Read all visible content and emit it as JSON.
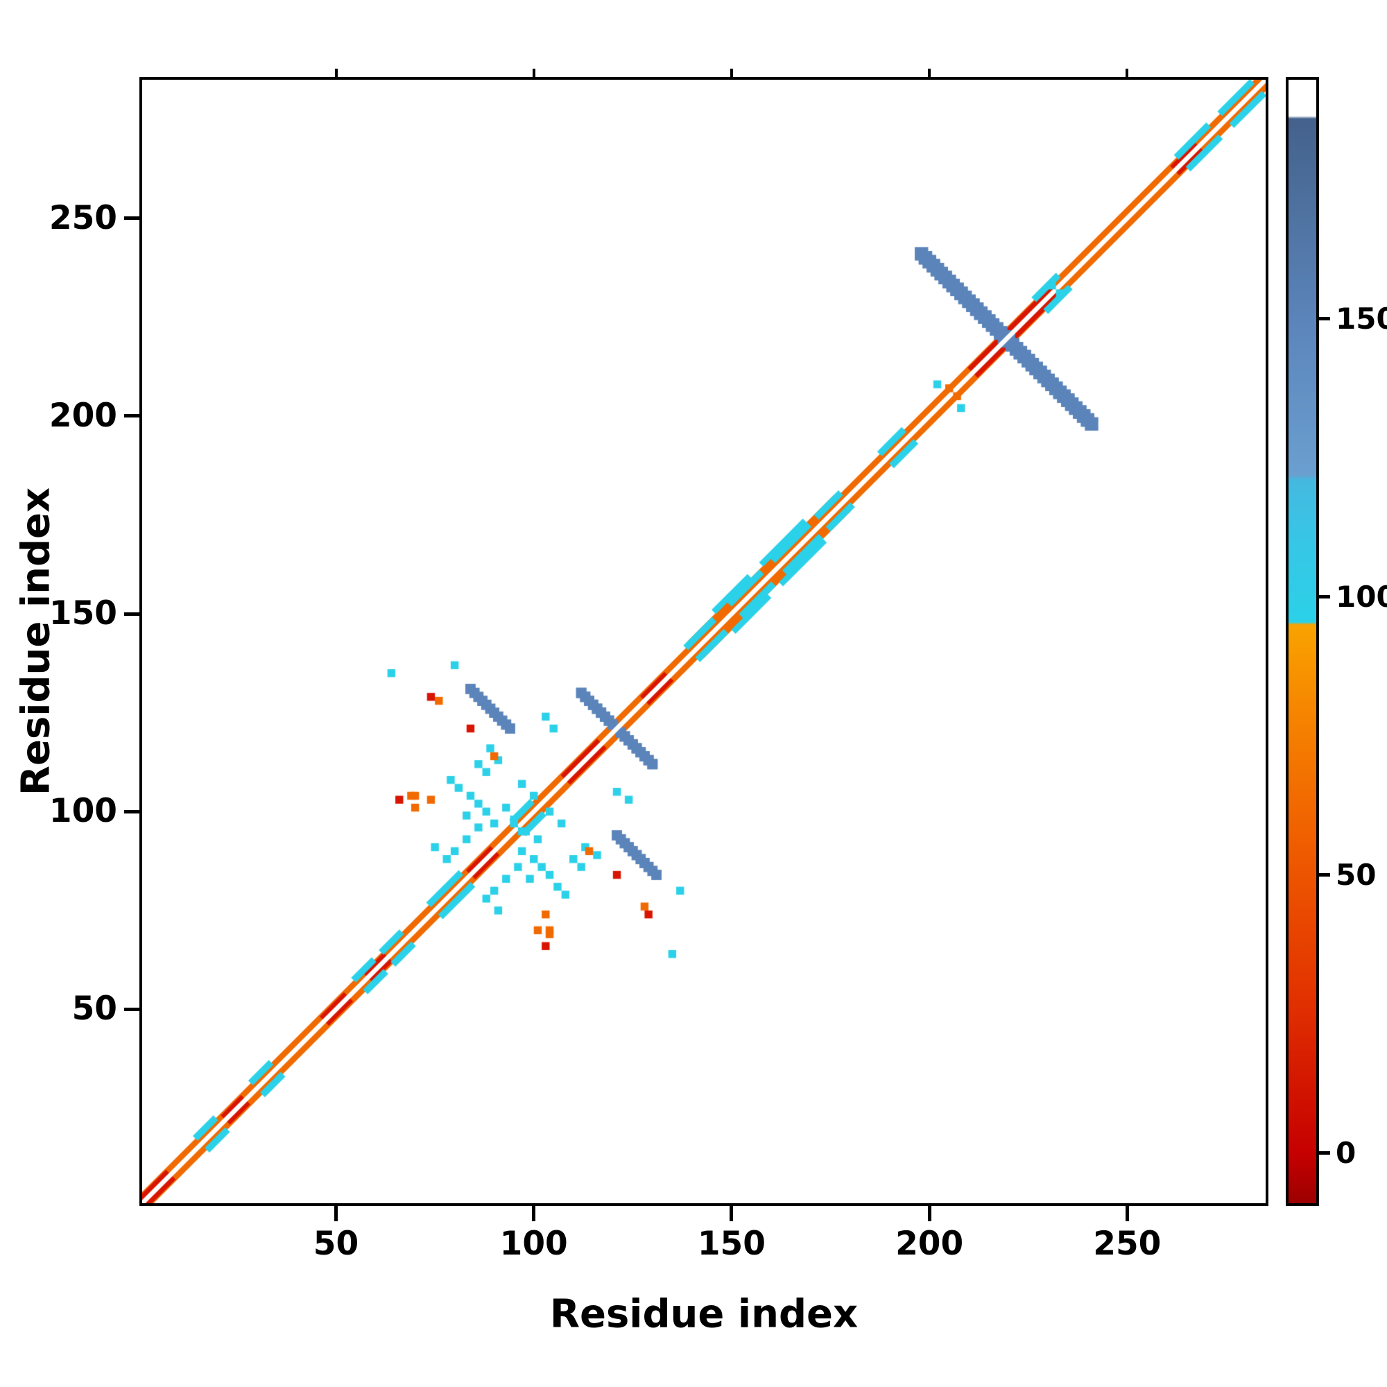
{
  "chart_data": {
    "type": "heatmap",
    "title": "",
    "xlabel": "Residue index",
    "ylabel": "Residue index",
    "xlim": [
      1,
      285
    ],
    "ylim": [
      1,
      285
    ],
    "xticks": [
      50,
      100,
      150,
      200,
      250
    ],
    "yticks": [
      50,
      100,
      150,
      200,
      250
    ],
    "grid": false,
    "background": "#ffffff",
    "palette": {
      "orange": "#f06a00",
      "red": "#d81500",
      "cyan": "#2bd1e8",
      "blue": "#5b84ba"
    },
    "colorbar": {
      "position": "right",
      "ticks": [
        0,
        50,
        100,
        150
      ],
      "range": [
        -9,
        193
      ],
      "stops": [
        {
          "v": -9,
          "c": "#9c0000"
        },
        {
          "v": 0,
          "c": "#c60000"
        },
        {
          "v": 28,
          "c": "#e23200"
        },
        {
          "v": 55,
          "c": "#ef5c00"
        },
        {
          "v": 80,
          "c": "#f68600"
        },
        {
          "v": 95,
          "c": "#f9a300"
        },
        {
          "v": 95.5,
          "c": "#2bd1e8"
        },
        {
          "v": 112,
          "c": "#39c4e5"
        },
        {
          "v": 121,
          "c": "#45b8e0"
        },
        {
          "v": 122,
          "c": "#6b9fd0"
        },
        {
          "v": 150,
          "c": "#5b84ba"
        },
        {
          "v": 170,
          "c": "#4e719f"
        },
        {
          "v": 186,
          "c": "#44618c"
        },
        {
          "v": 186.5,
          "c": "#ffffff"
        },
        {
          "v": 193,
          "c": "#ffffff"
        }
      ]
    },
    "features": [
      {
        "t": "dseg",
        "a": 1,
        "b": 285,
        "o": 1.5,
        "w": 2.0,
        "c": "#f06a00"
      },
      {
        "t": "dseg",
        "a": 140,
        "b": 176,
        "o": 3,
        "w": 1.7,
        "c": "#f06a00"
      },
      {
        "t": "dseg",
        "a": 1,
        "b": 7,
        "o": 1.2,
        "w": 1.8,
        "c": "#d81500"
      },
      {
        "t": "dseg",
        "a": 22,
        "b": 26,
        "o": 1.2,
        "w": 1.6,
        "c": "#d81500"
      },
      {
        "t": "dseg",
        "a": 47,
        "b": 52,
        "o": 1.2,
        "w": 1.6,
        "c": "#d81500"
      },
      {
        "t": "dseg",
        "a": 58,
        "b": 62,
        "o": 1.2,
        "w": 1.6,
        "c": "#d81500"
      },
      {
        "t": "dseg",
        "a": 84,
        "b": 89,
        "o": 1.2,
        "w": 1.6,
        "c": "#d81500"
      },
      {
        "t": "dseg",
        "a": 108,
        "b": 116,
        "o": 1.2,
        "w": 1.7,
        "c": "#d81500"
      },
      {
        "t": "dseg",
        "a": 128,
        "b": 133,
        "o": 1.2,
        "w": 1.6,
        "c": "#d81500"
      },
      {
        "t": "dseg",
        "a": 211,
        "b": 231,
        "o": 1.2,
        "w": 1.9,
        "c": "#d81500"
      },
      {
        "t": "dseg",
        "a": 262,
        "b": 267,
        "o": 1.2,
        "w": 1.6,
        "c": "#d81500"
      },
      {
        "t": "dseg",
        "a": 15,
        "b": 19,
        "o": 3,
        "w": 1.7,
        "c": "#2bd1e8"
      },
      {
        "t": "dseg",
        "a": 29,
        "b": 33,
        "o": 3,
        "w": 1.7,
        "c": "#2bd1e8"
      },
      {
        "t": "dseg",
        "a": 55,
        "b": 59,
        "o": 3,
        "w": 1.7,
        "c": "#2bd1e8"
      },
      {
        "t": "dseg",
        "a": 62,
        "b": 66,
        "o": 3,
        "w": 1.7,
        "c": "#2bd1e8"
      },
      {
        "t": "dseg",
        "a": 74,
        "b": 81,
        "o": 3,
        "w": 1.7,
        "c": "#2bd1e8"
      },
      {
        "t": "dseg",
        "a": 95,
        "b": 99,
        "o": 3,
        "w": 1.7,
        "c": "#2bd1e8"
      },
      {
        "t": "dseg",
        "a": 139,
        "b": 145,
        "o": 3,
        "w": 1.7,
        "c": "#2bd1e8"
      },
      {
        "t": "dseg",
        "a": 150,
        "b": 157,
        "o": 3,
        "w": 1.7,
        "c": "#2bd1e8"
      },
      {
        "t": "dseg",
        "a": 161,
        "b": 169,
        "o": 3,
        "w": 1.7,
        "c": "#2bd1e8"
      },
      {
        "t": "dseg",
        "a": 172,
        "b": 177,
        "o": 3,
        "w": 1.7,
        "c": "#2bd1e8"
      },
      {
        "t": "dseg",
        "a": 188,
        "b": 193,
        "o": 3,
        "w": 1.7,
        "c": "#2bd1e8"
      },
      {
        "t": "dseg",
        "a": 227,
        "b": 232,
        "o": 3,
        "w": 1.7,
        "c": "#2bd1e8"
      },
      {
        "t": "dseg",
        "a": 263,
        "b": 270,
        "o": 3,
        "w": 1.7,
        "c": "#2bd1e8"
      },
      {
        "t": "dseg",
        "a": 274,
        "b": 281,
        "o": 3,
        "w": 1.7,
        "c": "#2bd1e8"
      },
      {
        "t": "dseg",
        "a": 146,
        "b": 154,
        "o": 5,
        "w": 1.5,
        "c": "#2bd1e8"
      },
      {
        "t": "dseg",
        "a": 158,
        "b": 168,
        "o": 5,
        "w": 1.5,
        "c": "#2bd1e8"
      },
      {
        "t": "aseg",
        "x": 199,
        "y": 240,
        "len": 42,
        "w": 3.4,
        "c": "#5b84ba",
        "m": true
      },
      {
        "t": "aseg",
        "x": 112,
        "y": 130,
        "len": 18,
        "w": 2.6,
        "c": "#5b84ba",
        "m": true
      },
      {
        "t": "aseg",
        "x": 84,
        "y": 131,
        "len": 10,
        "w": 2.6,
        "c": "#5b84ba",
        "m": true
      },
      {
        "t": "dseg",
        "a": 1,
        "b": 285,
        "o": 0,
        "w": 1.15,
        "c": "#ffffff"
      },
      {
        "t": "pts",
        "s": 2,
        "c": "#2bd1e8",
        "m": true,
        "xy": [
          [
            97,
            90
          ],
          [
            100,
            88
          ],
          [
            102,
            86
          ],
          [
            104,
            84
          ],
          [
            99,
            83
          ],
          [
            96,
            86
          ],
          [
            93,
            83
          ],
          [
            106,
            81
          ],
          [
            108,
            79
          ],
          [
            110,
            88
          ],
          [
            112,
            86
          ],
          [
            90,
            80
          ],
          [
            88,
            78
          ],
          [
            95,
            97
          ],
          [
            98,
            95
          ],
          [
            101,
            93
          ],
          [
            104,
            100
          ],
          [
            107,
            97
          ],
          [
            91,
            75
          ],
          [
            113,
            91
          ],
          [
            116,
            89
          ],
          [
            121,
            105
          ],
          [
            124,
            103
          ],
          [
            137,
            80
          ],
          [
            64,
            135
          ],
          [
            231,
            233
          ],
          [
            208,
            202
          ]
        ]
      },
      {
        "t": "pts",
        "s": 2,
        "c": "#f06a00",
        "m": true,
        "xy": [
          [
            70,
            104
          ],
          [
            74,
            103
          ],
          [
            128,
            76
          ],
          [
            101,
            70
          ],
          [
            104,
            69
          ],
          [
            90,
            114
          ],
          [
            205,
            207
          ]
        ]
      },
      {
        "t": "pts",
        "s": 2,
        "c": "#d81500",
        "m": true,
        "xy": [
          [
            66,
            103
          ],
          [
            84,
            121
          ],
          [
            129,
            74
          ]
        ]
      }
    ]
  }
}
